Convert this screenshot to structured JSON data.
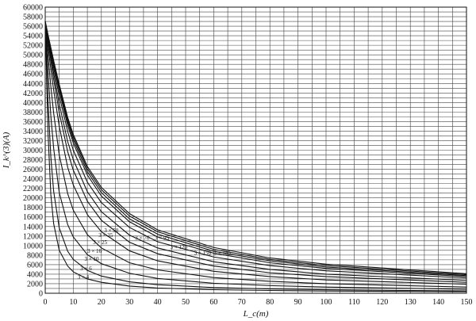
{
  "chart_data": {
    "type": "line",
    "xlabel": "L_c(m)",
    "ylabel": "I_k^(3)(A)",
    "xlim": [
      0,
      150
    ],
    "ylim": [
      0,
      60000
    ],
    "x_ticks": [
      0,
      10,
      20,
      30,
      40,
      50,
      60,
      70,
      80,
      90,
      100,
      110,
      120,
      130,
      140,
      150
    ],
    "y_ticks": [
      0,
      2000,
      4000,
      6000,
      8000,
      10000,
      12000,
      14000,
      16000,
      18000,
      20000,
      22000,
      24000,
      26000,
      28000,
      30000,
      32000,
      34000,
      36000,
      38000,
      40000,
      42000,
      44000,
      46000,
      48000,
      50000,
      52000,
      54000,
      56000,
      58000,
      60000
    ],
    "grid": true,
    "x_grid_step": 5,
    "y_grid_step": 1000,
    "series": [
      {
        "name": "3 × 4",
        "x": [
          0,
          1,
          2,
          3,
          5,
          8,
          10,
          15,
          20,
          30,
          40,
          60,
          80,
          100,
          150
        ],
        "y": [
          57000,
          33500,
          20700,
          14600,
          9000,
          5700,
          4500,
          3000,
          2300,
          1500,
          1100,
          750,
          580,
          460,
          310
        ]
      },
      {
        "name": "3 × 6",
        "x": [
          0,
          1,
          2,
          3,
          5,
          8,
          10,
          15,
          20,
          30,
          40,
          60,
          80,
          100,
          150
        ],
        "y": [
          57000,
          40200,
          28600,
          21400,
          13700,
          8800,
          7100,
          4800,
          3600,
          2400,
          1800,
          1200,
          900,
          730,
          490
        ]
      },
      {
        "name": "3 × 10",
        "x": [
          0,
          1,
          2,
          3,
          5,
          8,
          10,
          15,
          20,
          30,
          40,
          60,
          80,
          100,
          150
        ],
        "y": [
          57000,
          46300,
          37200,
          30400,
          21100,
          14400,
          11800,
          8100,
          6200,
          4200,
          3100,
          2100,
          1600,
          1300,
          850
        ]
      },
      {
        "name": "3 × 16",
        "x": [
          0,
          1,
          2,
          3,
          5,
          8,
          10,
          15,
          20,
          30,
          40,
          60,
          80,
          100,
          150
        ],
        "y": [
          57000,
          49800,
          43400,
          37800,
          29000,
          20900,
          17400,
          12300,
          9500,
          6400,
          4900,
          3300,
          2500,
          2000,
          1300
        ]
      },
      {
        "name": "3 × 25",
        "x": [
          0,
          1,
          2,
          3,
          5,
          8,
          10,
          15,
          20,
          30,
          40,
          60,
          80,
          100,
          150
        ],
        "y": [
          57000,
          51800,
          47000,
          42600,
          35000,
          26400,
          22700,
          16500,
          12900,
          8900,
          6800,
          4600,
          3500,
          2800,
          1900
        ]
      },
      {
        "name": "3 × 35",
        "x": [
          0,
          1,
          2,
          3,
          5,
          8,
          10,
          15,
          20,
          30,
          40,
          60,
          80,
          100,
          150
        ],
        "y": [
          57000,
          52800,
          48800,
          44900,
          37900,
          29700,
          25800,
          19300,
          15300,
          10700,
          8300,
          5700,
          4300,
          3500,
          2300
        ]
      },
      {
        "name": "3 × 50",
        "x": [
          0,
          1,
          2,
          3,
          5,
          8,
          10,
          15,
          20,
          30,
          40,
          60,
          80,
          100,
          150
        ],
        "y": [
          57000,
          53300,
          49700,
          46200,
          39700,
          31800,
          28000,
          21300,
          17100,
          12200,
          9500,
          6600,
          5000,
          4000,
          2700
        ]
      },
      {
        "name": "3 × 70",
        "x": [
          0,
          1,
          2,
          3,
          5,
          8,
          10,
          15,
          20,
          30,
          40,
          60,
          80,
          100,
          150
        ],
        "y": [
          57000,
          53700,
          50400,
          47300,
          41400,
          33900,
          30000,
          23300,
          19000,
          13800,
          10800,
          7600,
          5800,
          4700,
          3200
        ]
      },
      {
        "name": "3 × 95",
        "x": [
          0,
          1,
          2,
          3,
          5,
          8,
          10,
          15,
          20,
          30,
          40,
          60,
          80,
          100,
          150
        ],
        "y": [
          57000,
          53900,
          50900,
          48000,
          42500,
          35200,
          31500,
          24800,
          20400,
          15000,
          11800,
          8400,
          6400,
          5200,
          3500
        ]
      },
      {
        "name": "3 × 120",
        "x": [
          0,
          1,
          2,
          3,
          5,
          8,
          10,
          15,
          20,
          30,
          40,
          60,
          80,
          100,
          150
        ],
        "y": [
          57000,
          54000,
          51100,
          48300,
          43000,
          35900,
          32200,
          25500,
          21100,
          15600,
          12400,
          8800,
          6800,
          5500,
          3700
        ]
      },
      {
        "name": "3 × 150",
        "x": [
          0,
          1,
          2,
          3,
          5,
          8,
          10,
          15,
          20,
          30,
          40,
          60,
          80,
          100,
          150
        ],
        "y": [
          57000,
          54100,
          51300,
          48600,
          43400,
          36400,
          32800,
          26100,
          21700,
          16200,
          12900,
          9200,
          7100,
          5800,
          3900
        ]
      },
      {
        "name": "3 × 185",
        "x": [
          0,
          1,
          2,
          3,
          5,
          8,
          10,
          15,
          20,
          30,
          40,
          60,
          80,
          100,
          150
        ],
        "y": [
          57000,
          54200,
          51500,
          48800,
          43800,
          36900,
          33300,
          26600,
          22200,
          16700,
          13300,
          9600,
          7400,
          6100,
          4100
        ]
      }
    ],
    "curve_labels": [
      {
        "text": "3 × 4",
        "x": 11.5,
        "y": 3000
      },
      {
        "text": "3 × 6",
        "x": 12.5,
        "y": 4800
      },
      {
        "text": "3 × 10",
        "x": 14,
        "y": 6800
      },
      {
        "text": "3 × 16",
        "x": 15,
        "y": 8500
      },
      {
        "text": "3 × 25",
        "x": 17,
        "y": 10300
      },
      {
        "text": "3 × 35",
        "x": 19,
        "y": 11800
      },
      {
        "text": "3 × 50",
        "x": 21,
        "y": 12800
      },
      {
        "text": "3 × 70",
        "x": 32,
        "y": 11200
      },
      {
        "text": "3 × 95",
        "x": 39,
        "y": 11200
      },
      {
        "text": "3 × 120",
        "x": 44.5,
        "y": 9300
      },
      {
        "text": "3 × 150",
        "x": 53,
        "y": 8100
      },
      {
        "text": "3 × 185",
        "x": 60,
        "y": 8100
      }
    ]
  }
}
